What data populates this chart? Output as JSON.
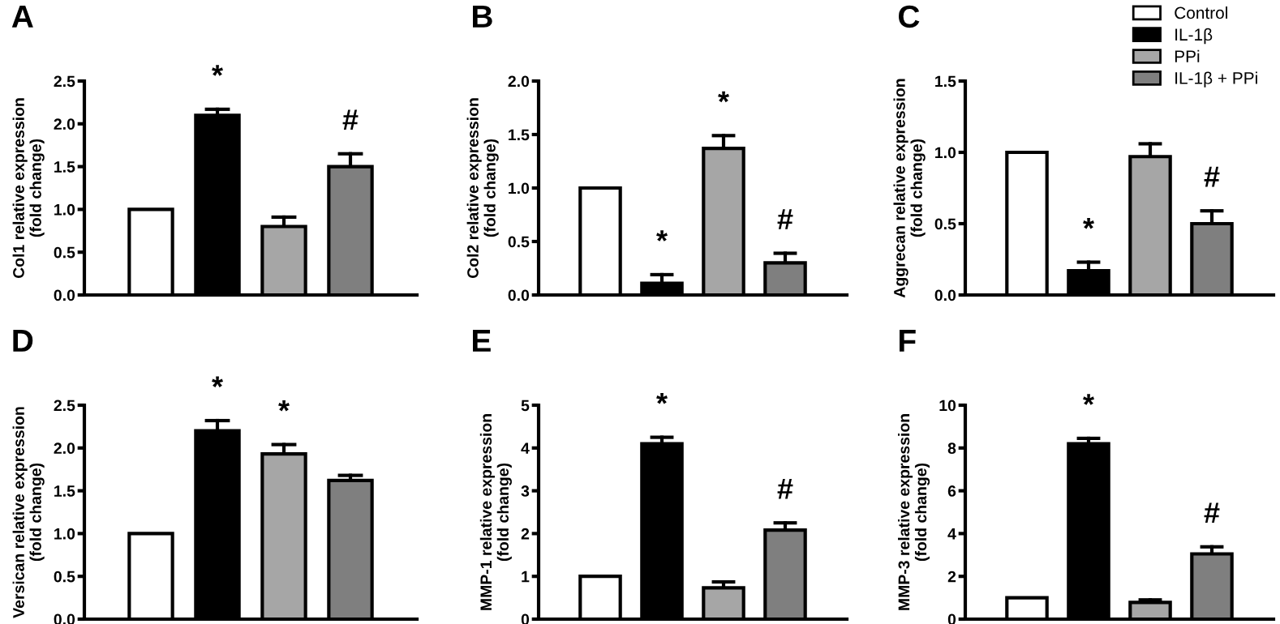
{
  "chart_data": [
    {
      "type": "bar",
      "title": "A",
      "ylabel": "Col1 relative expression\n(fold change)",
      "categories": [
        null
      ],
      "ylim": [
        0,
        2.5
      ],
      "yticks": [
        {
          "value": 0,
          "label": "0.0"
        },
        0.5,
        {
          "value": 1,
          "label": "1.0"
        },
        1.5,
        {
          "value": 2,
          "label": "2.0"
        },
        2.5
      ],
      "series": [
        {
          "color": "#ffffff",
          "values": [
            1.0
          ]
        },
        {
          "color": "#000000",
          "values": [
            2.1
          ],
          "errors": [
            [
              2.1,
              2.17
            ]
          ],
          "value_labels": [
            "*"
          ]
        },
        {
          "color": "#a6a6a6",
          "values": [
            0.8
          ],
          "errors": [
            [
              0.8,
              0.91
            ]
          ]
        },
        {
          "color": "#7f7f7f",
          "values": [
            1.5
          ],
          "errors": [
            [
              1.5,
              1.65
            ]
          ],
          "value_labels": [
            "#"
          ]
        }
      ]
    },
    {
      "type": "bar",
      "title": "B",
      "ylabel": "Col2 relative expression\n(fold change)",
      "categories": [
        null
      ],
      "ylim": [
        0,
        2
      ],
      "yticks": [
        {
          "value": 0,
          "label": "0.0"
        },
        0.5,
        {
          "value": 1,
          "label": "1.0"
        },
        1.5,
        {
          "value": 2,
          "label": "2.0"
        }
      ],
      "series": [
        {
          "color": "#ffffff",
          "values": [
            1.0
          ]
        },
        {
          "color": "#000000",
          "values": [
            0.11
          ],
          "errors": [
            [
              0.11,
              0.19
            ]
          ],
          "value_labels": [
            "*"
          ]
        },
        {
          "color": "#a6a6a6",
          "values": [
            1.37
          ],
          "errors": [
            [
              1.37,
              1.49
            ]
          ],
          "value_labels": [
            "*"
          ]
        },
        {
          "color": "#7f7f7f",
          "values": [
            0.3
          ],
          "errors": [
            [
              0.3,
              0.39
            ]
          ],
          "value_labels": [
            "#"
          ]
        }
      ]
    },
    {
      "type": "bar",
      "title": "C",
      "ylabel": "Aggrecan relative expression\n(fold change)",
      "categories": [
        null
      ],
      "ylim": [
        0,
        1.5
      ],
      "yticks": [
        {
          "value": 0,
          "label": "0.0"
        },
        0.5,
        {
          "value": 1,
          "label": "1.0"
        },
        1.5
      ],
      "legend": "top right",
      "series": [
        {
          "name": "Control",
          "color": "#ffffff",
          "values": [
            1.0
          ]
        },
        {
          "name": "IL-1β",
          "color": "#000000",
          "values": [
            0.17
          ],
          "errors": [
            [
              0.17,
              0.23
            ]
          ],
          "value_labels": [
            "*"
          ]
        },
        {
          "name": "PPi",
          "color": "#a6a6a6",
          "values": [
            0.97
          ],
          "errors": [
            [
              0.97,
              1.06
            ]
          ]
        },
        {
          "name": "IL-1β + PPi",
          "color": "#7f7f7f",
          "values": [
            0.5
          ],
          "errors": [
            [
              0.5,
              0.59
            ]
          ],
          "value_labels": [
            "#"
          ]
        }
      ]
    },
    {
      "type": "bar",
      "title": "D",
      "ylabel": "Versican relative expression\n(fold change)",
      "categories": [
        null
      ],
      "ylim": [
        0,
        2.5
      ],
      "yticks": [
        {
          "value": 0,
          "label": "0.0"
        },
        0.5,
        {
          "value": 1,
          "label": "1.0"
        },
        1.5,
        {
          "value": 2,
          "label": "2.0"
        },
        2.5
      ],
      "series": [
        {
          "color": "#ffffff",
          "values": [
            1.0
          ]
        },
        {
          "color": "#000000",
          "values": [
            2.2
          ],
          "errors": [
            [
              2.2,
              2.32
            ]
          ],
          "value_labels": [
            "*"
          ]
        },
        {
          "color": "#a6a6a6",
          "values": [
            1.93
          ],
          "errors": [
            [
              1.93,
              2.04
            ]
          ],
          "value_labels": [
            "*"
          ]
        },
        {
          "color": "#7f7f7f",
          "values": [
            1.62
          ],
          "errors": [
            [
              1.62,
              1.68
            ]
          ]
        }
      ]
    },
    {
      "type": "bar",
      "title": "E",
      "ylabel": "MMP-1 relative expression\n(fold change)",
      "categories": [
        null
      ],
      "ylim": [
        0,
        5
      ],
      "yticks": [
        0,
        1,
        2,
        3,
        4,
        5
      ],
      "series": [
        {
          "color": "#ffffff",
          "values": [
            1.0
          ]
        },
        {
          "color": "#000000",
          "values": [
            4.1
          ],
          "errors": [
            [
              4.1,
              4.25
            ]
          ],
          "value_labels": [
            "*"
          ]
        },
        {
          "color": "#a6a6a6",
          "values": [
            0.73
          ],
          "errors": [
            [
              0.73,
              0.87
            ]
          ]
        },
        {
          "color": "#7f7f7f",
          "values": [
            2.08
          ],
          "errors": [
            [
              2.08,
              2.25
            ]
          ],
          "value_labels": [
            "#"
          ]
        }
      ]
    },
    {
      "type": "bar",
      "title": "F",
      "ylabel": "MMP-3 relative expression\n(fold change)",
      "categories": [
        null
      ],
      "ylim": [
        0,
        10
      ],
      "yticks": [
        0,
        2,
        4,
        6,
        8,
        10
      ],
      "series": [
        {
          "color": "#ffffff",
          "values": [
            1.0
          ]
        },
        {
          "color": "#000000",
          "values": [
            8.2
          ],
          "errors": [
            [
              8.2,
              8.45
            ]
          ],
          "value_labels": [
            "*"
          ]
        },
        {
          "color": "#a6a6a6",
          "values": [
            0.78
          ],
          "errors": [
            [
              0.78,
              0.9
            ]
          ]
        },
        {
          "color": "#7f7f7f",
          "values": [
            3.05
          ],
          "errors": [
            [
              3.05,
              3.38
            ]
          ],
          "value_labels": [
            "#"
          ]
        }
      ]
    }
  ]
}
